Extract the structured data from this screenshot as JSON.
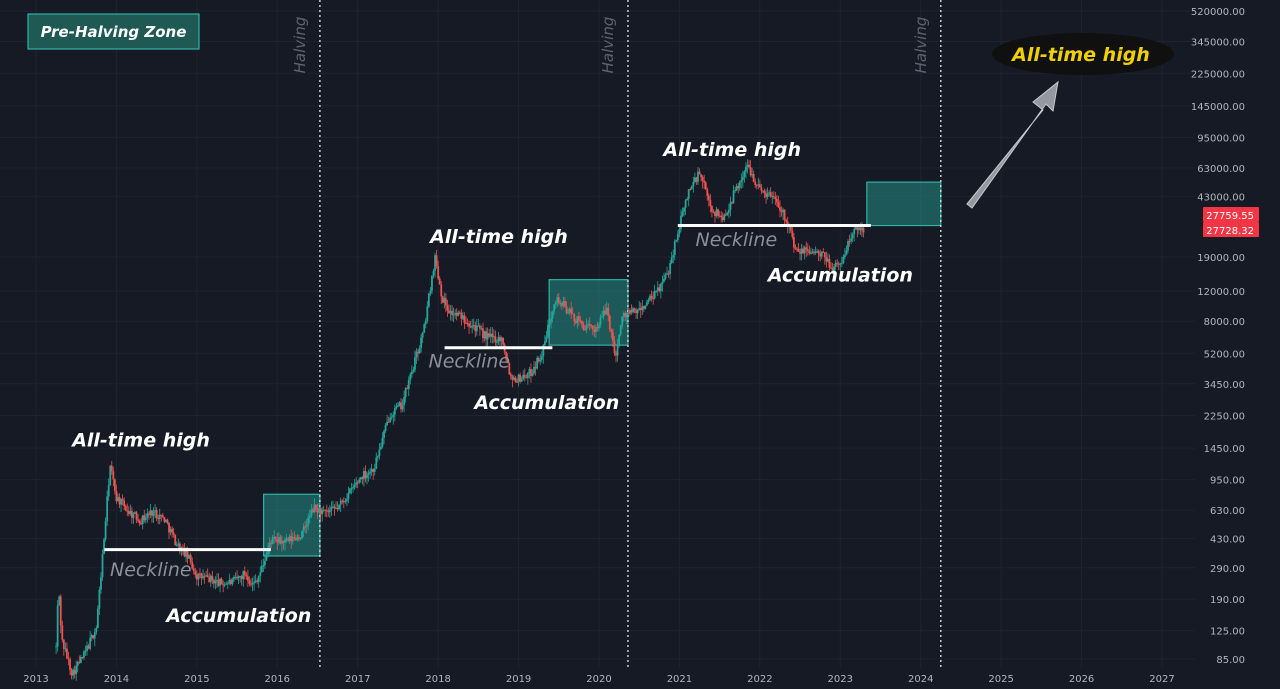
{
  "legend_box": {
    "label": "Pre-Halving Zone",
    "color": "#26a69a"
  },
  "target_label": "All-time high",
  "chart_data": {
    "type": "candlestick",
    "title": "",
    "y_scale": "log",
    "ylim": [
      80,
      600000
    ],
    "x_range": [
      2012.95,
      2027.3
    ],
    "x_ticks": [
      "2013",
      "2014",
      "2015",
      "2016",
      "2017",
      "2018",
      "2019",
      "2020",
      "2021",
      "2022",
      "2023",
      "2024",
      "2025",
      "2026",
      "2027"
    ],
    "y_ticks": [
      "520000.00",
      "345000.00",
      "225000.00",
      "145000.00",
      "95000.00",
      "63000.00",
      "43000.00",
      "27759.55",
      "27728.32",
      "19000.00",
      "12000.00",
      "8000.00",
      "5200.00",
      "3450.00",
      "2250.00",
      "1450.00",
      "950.00",
      "630.00",
      "430.00",
      "290.00",
      "190.00",
      "125.00",
      "85.00"
    ],
    "price_labels": [
      {
        "text": "27759.55",
        "color": "#f23645"
      },
      {
        "text": "27728.32",
        "color": "#f23645"
      }
    ],
    "price_path": [
      [
        2013.25,
        100
      ],
      [
        2013.28,
        230
      ],
      [
        2013.32,
        110
      ],
      [
        2013.45,
        70
      ],
      [
        2013.6,
        90
      ],
      [
        2013.75,
        130
      ],
      [
        2013.85,
        450
      ],
      [
        2013.92,
        1150
      ],
      [
        2014.0,
        750
      ],
      [
        2014.15,
        620
      ],
      [
        2014.3,
        550
      ],
      [
        2014.45,
        620
      ],
      [
        2014.6,
        560
      ],
      [
        2014.75,
        400
      ],
      [
        2014.9,
        330
      ],
      [
        2015.0,
        260
      ],
      [
        2015.15,
        250
      ],
      [
        2015.3,
        235
      ],
      [
        2015.45,
        240
      ],
      [
        2015.6,
        270
      ],
      [
        2015.7,
        230
      ],
      [
        2015.8,
        280
      ],
      [
        2015.92,
        420
      ],
      [
        2016.1,
        410
      ],
      [
        2016.3,
        450
      ],
      [
        2016.45,
        650
      ],
      [
        2016.6,
        600
      ],
      [
        2016.75,
        650
      ],
      [
        2016.9,
        800
      ],
      [
        2017.05,
        1000
      ],
      [
        2017.2,
        1100
      ],
      [
        2017.4,
        2300
      ],
      [
        2017.55,
        2600
      ],
      [
        2017.7,
        4500
      ],
      [
        2017.82,
        7000
      ],
      [
        2017.96,
        19000
      ],
      [
        2018.05,
        11000
      ],
      [
        2018.15,
        9000
      ],
      [
        2018.3,
        8500
      ],
      [
        2018.45,
        7500
      ],
      [
        2018.6,
        6500
      ],
      [
        2018.8,
        6300
      ],
      [
        2018.9,
        3800
      ],
      [
        2019.0,
        3700
      ],
      [
        2019.15,
        4000
      ],
      [
        2019.3,
        5300
      ],
      [
        2019.45,
        11000
      ],
      [
        2019.55,
        10000
      ],
      [
        2019.7,
        8300
      ],
      [
        2019.85,
        7300
      ],
      [
        2019.95,
        7200
      ],
      [
        2020.1,
        9500
      ],
      [
        2020.2,
        5000
      ],
      [
        2020.3,
        8800
      ],
      [
        2020.5,
        9200
      ],
      [
        2020.7,
        11500
      ],
      [
        2020.85,
        15000
      ],
      [
        2021.0,
        29000
      ],
      [
        2021.12,
        47000
      ],
      [
        2021.25,
        59000
      ],
      [
        2021.4,
        36000
      ],
      [
        2021.55,
        32000
      ],
      [
        2021.7,
        47000
      ],
      [
        2021.85,
        65000
      ],
      [
        2022.0,
        47000
      ],
      [
        2022.2,
        42000
      ],
      [
        2022.35,
        30000
      ],
      [
        2022.45,
        20000
      ],
      [
        2022.6,
        21000
      ],
      [
        2022.8,
        19000
      ],
      [
        2022.9,
        16500
      ],
      [
        2023.0,
        17000
      ],
      [
        2023.1,
        23000
      ],
      [
        2023.2,
        28000
      ],
      [
        2023.3,
        27750
      ]
    ],
    "halvings": [
      {
        "x": 2016.53,
        "label": "Halving"
      },
      {
        "x": 2020.36,
        "label": "Halving"
      },
      {
        "x": 2024.25,
        "label": "Halving"
      }
    ],
    "zones": [
      {
        "x0": 2015.83,
        "x1": 2016.53,
        "y0": 340,
        "y1": 780
      },
      {
        "x0": 2019.38,
        "x1": 2020.36,
        "y0": 5800,
        "y1": 14000
      },
      {
        "x0": 2023.33,
        "x1": 2024.25,
        "y0": 29000,
        "y1": 52000
      }
    ],
    "necklines": [
      {
        "x0": 2013.85,
        "x1": 2015.92,
        "y": 370
      },
      {
        "x0": 2018.08,
        "x1": 2019.42,
        "y": 5600
      },
      {
        "x0": 2020.98,
        "x1": 2023.38,
        "y": 29000
      }
    ],
    "annotations": [
      {
        "text": "All-time high",
        "x": 2013.45,
        "y": 1480,
        "kind": "label"
      },
      {
        "text": "Neckline",
        "x": 2013.92,
        "y": 260,
        "kind": "neckline"
      },
      {
        "text": "Accumulation",
        "x": 2014.62,
        "y": 140,
        "kind": "label"
      },
      {
        "text": "All-time high",
        "x": 2017.9,
        "y": 23000,
        "kind": "label"
      },
      {
        "text": "Neckline",
        "x": 2017.88,
        "y": 4300,
        "kind": "neckline"
      },
      {
        "text": "Accumulation",
        "x": 2018.45,
        "y": 2450,
        "kind": "label"
      },
      {
        "text": "All-time high",
        "x": 2020.8,
        "y": 74000,
        "kind": "label"
      },
      {
        "text": "Neckline",
        "x": 2021.2,
        "y": 22000,
        "kind": "neckline"
      },
      {
        "text": "Accumulation",
        "x": 2022.1,
        "y": 13700,
        "kind": "label"
      }
    ]
  }
}
